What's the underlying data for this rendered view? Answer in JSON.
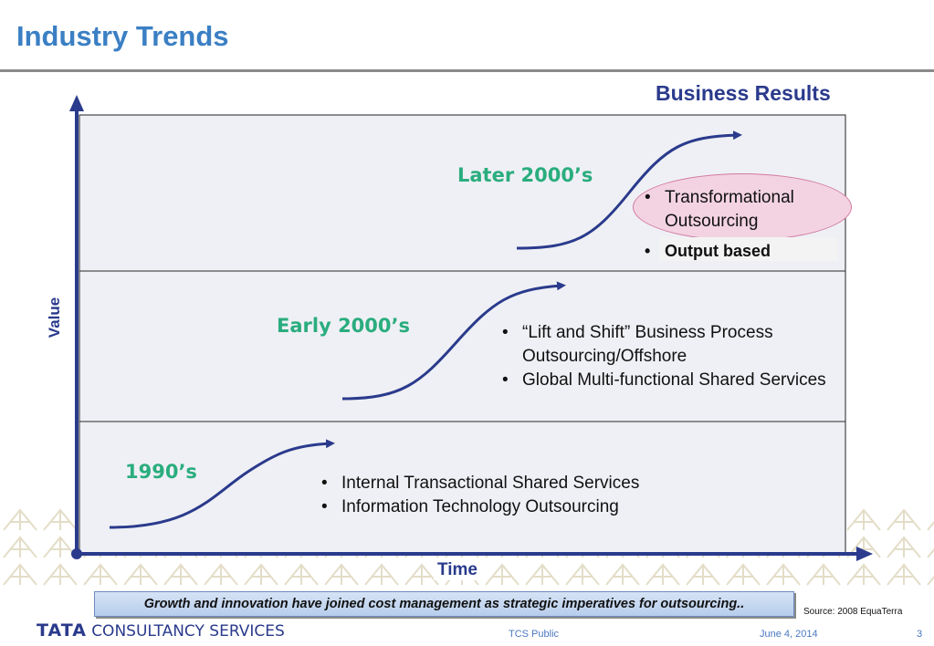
{
  "page": {
    "title": "Industry Trends"
  },
  "diagram": {
    "results_label": "Business Results",
    "y_axis_label": "Value",
    "x_axis_label": "Time",
    "eras": [
      {
        "label": "1990’s",
        "bullets": [
          "Internal Transactional Shared Services",
          "Information Technology Outsourcing"
        ]
      },
      {
        "label": "Early 2000’s",
        "bullets": [
          "“Lift and Shift” Business Process Outsourcing/Offshore",
          "Global Multi-functional Shared Services"
        ]
      },
      {
        "label": "Later 2000’s",
        "bullets": [
          "Transformational Outsourcing",
          "Output based"
        ]
      }
    ],
    "bullet_glyph": "•"
  },
  "banner": {
    "text": "Growth and innovation have joined cost management as strategic imperatives for outsourcing.."
  },
  "source": "Source: 2008 EquaTerra",
  "footer": {
    "logo_tata": "TATA",
    "logo_rest": "CONSULTANCY SERVICES",
    "classification": "TCS Public",
    "date": "June 4, 2014",
    "page_number": "3"
  },
  "colors": {
    "title": "#3b7fc4",
    "axis": "#2a3a8c",
    "era_label": "#2aad7e",
    "band": "#eff0f5",
    "highlight": "#f3d3e2"
  },
  "icons": {
    "arrow": "arrow-icon"
  }
}
